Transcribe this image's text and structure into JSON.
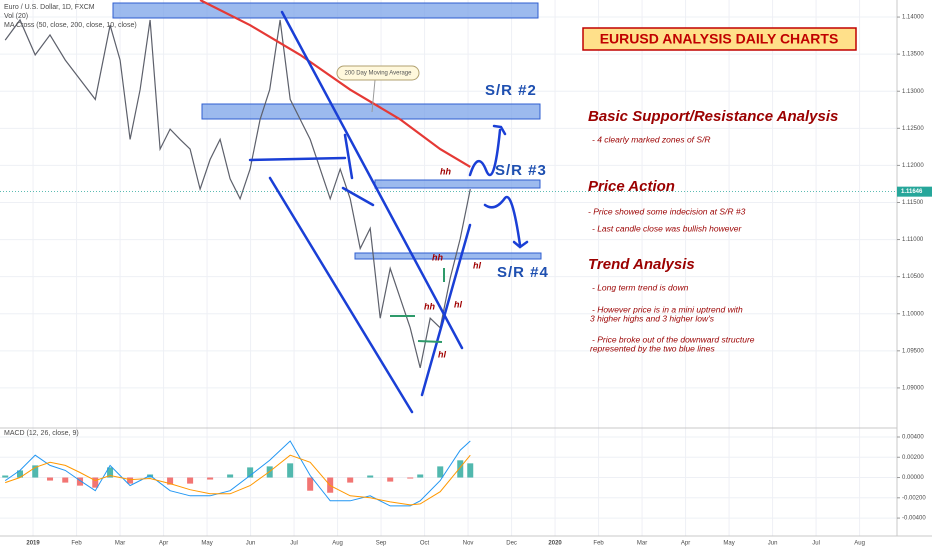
{
  "header": {
    "title": "EURUSD ANALYSIS DAILY CHARTS"
  },
  "analysis": {
    "sr_heading": "Basic Support/Resistance Analysis",
    "sr_note": "- 4 clearly marked zones of S/R",
    "pa_heading": "Price Action",
    "pa_note_1": "- Price showed some indecision at S/R #3",
    "pa_note_2": "- Last candle close was bullish however",
    "trend_heading": "Trend Analysis",
    "trend_note_1": "- Long term trend is down",
    "trend_note_2a": "- However price is in a mini uptrend with",
    "trend_note_2b": "3 higher highs and 3 higher low's",
    "trend_note_3a": "- Price broke out of the downward structure",
    "trend_note_3b": "represented by the two blue lines"
  },
  "chart_data": [
    {
      "type": "line",
      "title": "Euro / U.S. Dollar, 1D, FXCM",
      "indicators": [
        "Vol (20)",
        "MA Cross (50, close, 200, close, 10, close)"
      ],
      "annotations": [
        "200 Day Moving Average",
        "S/R #2",
        "S/R #3",
        "S/R #4",
        "hh",
        "hh",
        "hh",
        "hl",
        "hl",
        "hl"
      ],
      "series": [
        {
          "color": "#5d606b",
          "x": [
            -0.64,
            -0.3,
            0.05,
            0.39,
            0.74,
            1.08,
            1.43,
            1.77,
            2.0,
            2.23,
            2.46,
            2.69,
            2.92,
            3.15,
            3.38,
            3.61,
            3.84,
            4.07,
            4.3,
            4.53,
            4.76,
            4.99,
            5.22,
            5.44,
            5.68,
            5.91,
            6.14,
            6.37,
            6.6,
            6.83,
            7.06,
            7.29,
            7.52,
            7.75,
            7.98,
            8.21,
            8.44,
            8.67,
            8.9,
            9.13,
            9.36,
            9.59,
            9.82,
            10.05
          ],
          "values": [
            1.1369,
            1.1396,
            1.1349,
            1.1376,
            1.1342,
            1.1316,
            1.1289,
            1.1389,
            1.1342,
            1.1235,
            1.1302,
            1.1396,
            1.1222,
            1.1249,
            1.1235,
            1.1222,
            1.1168,
            1.1208,
            1.1235,
            1.1182,
            1.1155,
            1.1195,
            1.1262,
            1.1302,
            1.1396,
            1.1289,
            1.1262,
            1.1235,
            1.1195,
            1.1155,
            1.1195,
            1.1155,
            1.1088,
            1.1115,
            1.0994,
            1.1061,
            1.1021,
            1.0981,
            1.0927,
            1.0994,
            1.0981,
            1.1048,
            1.1101,
            1.1168
          ]
        },
        {
          "color": "#e53935",
          "x": [
            3.84,
            4.99,
            6.14,
            7.29,
            8.44,
            9.36,
            10.05
          ],
          "values": [
            1.1423,
            1.1389,
            1.1349,
            1.1302,
            1.1262,
            1.1222,
            1.1198
          ]
        }
      ],
      "ylim": [
        1.085,
        1.1423
      ],
      "yticks": [
        {
          "value": 1.14,
          "label": "1.14000"
        },
        {
          "value": 1.135,
          "label": "1.13500"
        },
        {
          "value": 1.13,
          "label": "1.13000"
        },
        {
          "value": 1.125,
          "label": "1.12500"
        },
        {
          "value": 1.12,
          "label": "1.12000"
        },
        {
          "value": 1.115,
          "label": "1.11500"
        },
        {
          "value": 1.11,
          "label": "1.11000"
        },
        {
          "value": 1.105,
          "label": "1.10500"
        },
        {
          "value": 1.1,
          "label": "1.10000"
        },
        {
          "value": 1.095,
          "label": "1.09500"
        },
        {
          "value": 1.09,
          "label": "1.09000"
        }
      ],
      "last_price": 1.11646,
      "grid": true
    },
    {
      "type": "macd",
      "title": "MACD (12, 26, close, 9)",
      "x": [
        -0.64,
        -0.3,
        0.05,
        0.39,
        0.74,
        1.08,
        1.43,
        1.77,
        2.23,
        2.69,
        3.15,
        3.61,
        4.07,
        4.53,
        4.99,
        5.44,
        5.91,
        6.37,
        6.83,
        7.29,
        7.75,
        8.21,
        8.67,
        8.9,
        9.36,
        9.82,
        10.05
      ],
      "series": [
        {
          "color": "#2196f3",
          "values": [
            -0.0003,
            0.0007,
            0.0022,
            0.0012,
            0.0007,
            -0.0003,
            -0.0013,
            0.0012,
            -0.0008,
            0.0002,
            -0.0013,
            -0.0018,
            -0.0018,
            -0.0013,
            0.0002,
            0.0017,
            0.0036,
            0.0002,
            -0.0023,
            -0.0023,
            -0.0018,
            -0.0028,
            -0.0028,
            -0.0023,
            -0.0003,
            0.0027,
            0.0036
          ]
        },
        {
          "color": "#ff9800",
          "values": [
            -0.0005,
            0.0,
            0.001,
            0.0015,
            0.0012,
            0.0005,
            -0.0003,
            0.0002,
            -0.0002,
            -0.0001,
            -0.0006,
            -0.0012,
            -0.0016,
            -0.0016,
            -0.0008,
            0.0006,
            0.0022,
            0.0015,
            -0.0008,
            -0.0018,
            -0.002,
            -0.0024,
            -0.0027,
            -0.0026,
            -0.0014,
            0.001,
            0.0022
          ]
        }
      ],
      "histogram": [
        0.0002,
        0.0007,
        0.0012,
        -0.0003,
        -0.0005,
        -0.0008,
        -0.001,
        0.001,
        -0.0006,
        0.0003,
        -0.0007,
        -0.0006,
        -0.0002,
        0.0003,
        0.001,
        0.0011,
        0.0014,
        -0.0013,
        -0.0015,
        -0.0005,
        0.0002,
        -0.0004,
        -0.0001,
        0.0003,
        0.0011,
        0.0017,
        0.0014
      ],
      "up_color": "#26a69a",
      "down_color": "#ef5350",
      "ylim": [
        -0.00567,
        0.00469
      ],
      "yticks": [
        {
          "value": 0.004,
          "label": "0.00400"
        },
        {
          "value": 0.002,
          "label": "0.00200"
        },
        {
          "value": 0,
          "label": "0.00000"
        },
        {
          "value": -0.002,
          "label": "-0.00200"
        },
        {
          "value": -0.004,
          "label": "-0.00400"
        }
      ],
      "xlim": [
        -0.76,
        19.86
      ],
      "xticks": [
        {
          "value": 0,
          "label": "2019"
        },
        {
          "value": 1,
          "label": "Feb"
        },
        {
          "value": 2,
          "label": "Mar"
        },
        {
          "value": 3,
          "label": "Apr"
        },
        {
          "value": 4,
          "label": "May"
        },
        {
          "value": 5,
          "label": "Jun"
        },
        {
          "value": 6,
          "label": "Jul"
        },
        {
          "value": 7,
          "label": "Aug"
        },
        {
          "value": 8,
          "label": "Sep"
        },
        {
          "value": 9,
          "label": "Oct"
        },
        {
          "value": 10,
          "label": "Nov"
        },
        {
          "value": 11,
          "label": "Dec"
        },
        {
          "value": 12,
          "label": "2020"
        },
        {
          "value": 13,
          "label": "Feb"
        },
        {
          "value": 14,
          "label": "Mar"
        },
        {
          "value": 15,
          "label": "Apr"
        },
        {
          "value": 16,
          "label": "May"
        },
        {
          "value": 17,
          "label": "Jun"
        },
        {
          "value": 18,
          "label": "Jul"
        },
        {
          "value": 19,
          "label": "Aug"
        }
      ],
      "grid": true
    }
  ]
}
